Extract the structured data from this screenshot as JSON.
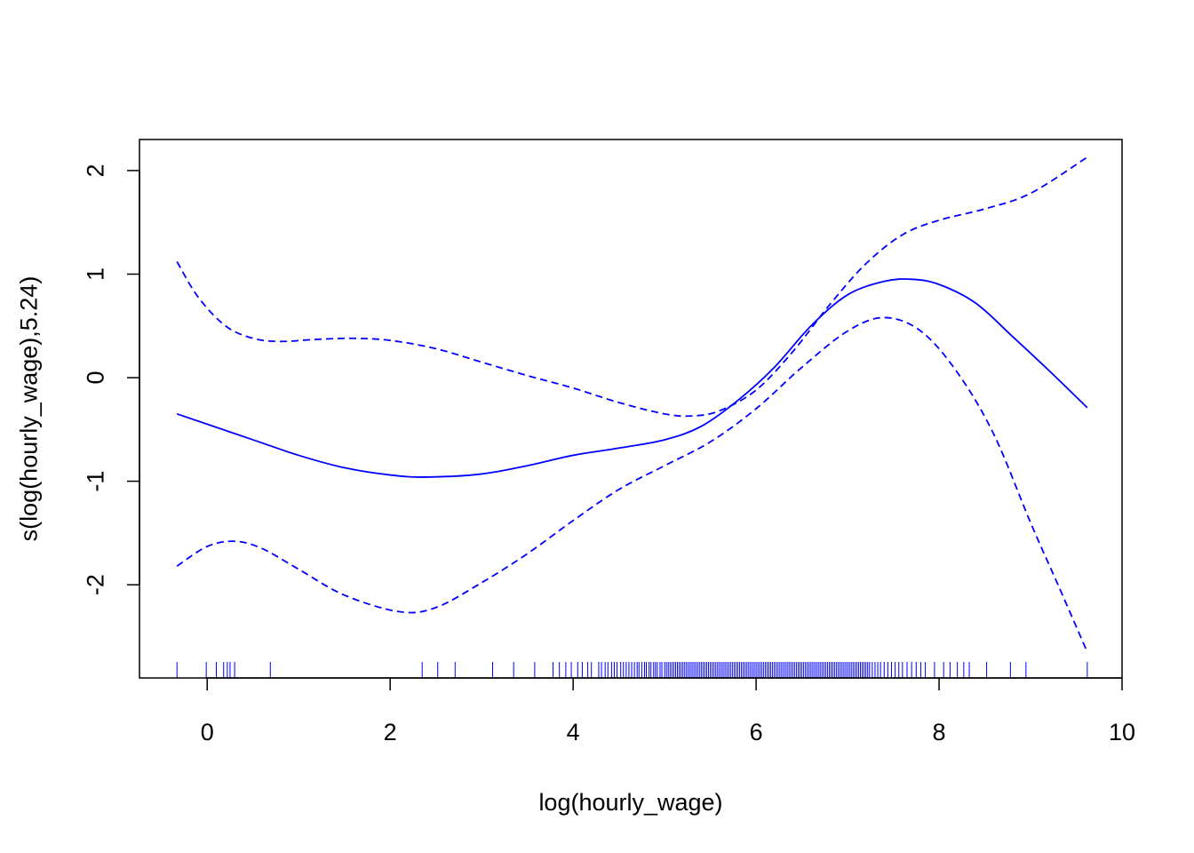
{
  "chart_data": {
    "type": "line",
    "title": "",
    "xlabel": "log(hourly_wage)",
    "ylabel": "s(log(hourly_wage),5.24)",
    "xlim": [
      -0.74,
      10.0
    ],
    "ylim": [
      -2.9,
      2.3
    ],
    "x_ticks": [
      0,
      2,
      4,
      6,
      8,
      10
    ],
    "x_tick_labels": [
      "0",
      "2",
      "4",
      "6",
      "8",
      "10"
    ],
    "y_ticks": [
      -2,
      -1,
      0,
      1,
      2
    ],
    "y_tick_labels": [
      "-2",
      "-1",
      "0",
      "1",
      "2"
    ],
    "grid": false,
    "legend": "none",
    "colors": {
      "smooth": "#0000ff",
      "rug": "#0000ff",
      "axis": "#000000"
    },
    "series": [
      {
        "role": "estimate",
        "style": "solid",
        "x": [
          -0.33,
          0.5,
          1.0,
          1.5,
          2.0,
          2.4,
          3.0,
          3.5,
          4.0,
          4.5,
          5.0,
          5.4,
          5.8,
          6.2,
          6.6,
          7.0,
          7.4,
          7.7,
          8.0,
          8.4,
          8.8,
          9.2,
          9.62
        ],
        "y": [
          -0.35,
          -0.6,
          -0.75,
          -0.87,
          -0.94,
          -0.96,
          -0.93,
          -0.85,
          -0.75,
          -0.68,
          -0.6,
          -0.47,
          -0.22,
          0.1,
          0.5,
          0.8,
          0.93,
          0.95,
          0.9,
          0.72,
          0.4,
          0.07,
          -0.29
        ]
      },
      {
        "role": "upper-ci",
        "style": "dashed",
        "x": [
          -0.33,
          -0.1,
          0.2,
          0.5,
          0.8,
          1.2,
          1.6,
          2.0,
          2.5,
          3.0,
          3.5,
          4.0,
          4.5,
          5.0,
          5.3,
          5.6,
          6.0,
          6.4,
          6.8,
          7.2,
          7.6,
          8.0,
          8.5,
          9.0,
          9.62
        ],
        "y": [
          1.12,
          0.78,
          0.5,
          0.38,
          0.35,
          0.37,
          0.38,
          0.36,
          0.28,
          0.15,
          0.02,
          -0.1,
          -0.24,
          -0.35,
          -0.37,
          -0.32,
          -0.12,
          0.25,
          0.7,
          1.1,
          1.38,
          1.52,
          1.63,
          1.78,
          2.13
        ]
      },
      {
        "role": "lower-ci",
        "style": "dashed",
        "x": [
          -0.33,
          0.0,
          0.3,
          0.6,
          1.0,
          1.5,
          2.1,
          2.5,
          3.0,
          3.5,
          4.0,
          4.5,
          5.0,
          5.5,
          6.0,
          6.5,
          7.0,
          7.4,
          7.8,
          8.2,
          8.6,
          9.0,
          9.3,
          9.62
        ],
        "y": [
          -1.82,
          -1.63,
          -1.58,
          -1.65,
          -1.85,
          -2.1,
          -2.26,
          -2.22,
          -1.98,
          -1.7,
          -1.38,
          -1.08,
          -0.85,
          -0.62,
          -0.3,
          0.1,
          0.45,
          0.58,
          0.45,
          0.05,
          -0.55,
          -1.4,
          -2.0,
          -2.65
        ]
      }
    ],
    "rug": [
      -0.33,
      -0.01,
      0.1,
      0.18,
      0.22,
      0.25,
      0.3,
      0.69,
      2.35,
      2.52,
      2.71,
      3.12,
      3.35,
      3.58,
      3.78,
      3.85,
      3.92,
      3.98,
      4.05,
      4.1,
      4.16,
      4.2,
      4.28,
      4.31,
      4.35,
      4.38,
      4.42,
      4.45,
      4.48,
      4.52,
      4.55,
      4.58,
      4.61,
      4.64,
      4.67,
      4.7,
      4.72,
      4.75,
      4.78,
      4.8,
      4.83,
      4.85,
      4.88,
      4.9,
      4.92,
      4.95,
      4.97,
      5.0,
      5.02,
      5.04,
      5.06,
      5.08,
      5.1,
      5.12,
      5.14,
      5.16,
      5.18,
      5.2,
      5.22,
      5.24,
      5.26,
      5.28,
      5.3,
      5.32,
      5.34,
      5.36,
      5.38,
      5.4,
      5.42,
      5.44,
      5.46,
      5.48,
      5.5,
      5.52,
      5.54,
      5.56,
      5.58,
      5.6,
      5.62,
      5.64,
      5.66,
      5.68,
      5.7,
      5.72,
      5.74,
      5.76,
      5.78,
      5.8,
      5.82,
      5.84,
      5.86,
      5.88,
      5.9,
      5.92,
      5.94,
      5.96,
      5.98,
      6.0,
      6.02,
      6.04,
      6.06,
      6.08,
      6.1,
      6.12,
      6.14,
      6.16,
      6.18,
      6.2,
      6.22,
      6.24,
      6.26,
      6.28,
      6.3,
      6.32,
      6.34,
      6.36,
      6.38,
      6.4,
      6.42,
      6.44,
      6.46,
      6.48,
      6.5,
      6.52,
      6.54,
      6.56,
      6.58,
      6.6,
      6.62,
      6.64,
      6.66,
      6.68,
      6.7,
      6.72,
      6.74,
      6.76,
      6.78,
      6.8,
      6.82,
      6.84,
      6.86,
      6.88,
      6.9,
      6.92,
      6.94,
      6.96,
      6.98,
      7.0,
      7.02,
      7.04,
      7.06,
      7.08,
      7.1,
      7.12,
      7.14,
      7.16,
      7.18,
      7.2,
      7.22,
      7.24,
      7.27,
      7.3,
      7.33,
      7.36,
      7.4,
      7.44,
      7.48,
      7.52,
      7.56,
      7.6,
      7.65,
      7.7,
      7.75,
      7.8,
      7.85,
      7.95,
      8.05,
      8.12,
      8.2,
      8.27,
      8.33,
      8.52,
      8.78,
      8.95,
      9.62
    ]
  }
}
